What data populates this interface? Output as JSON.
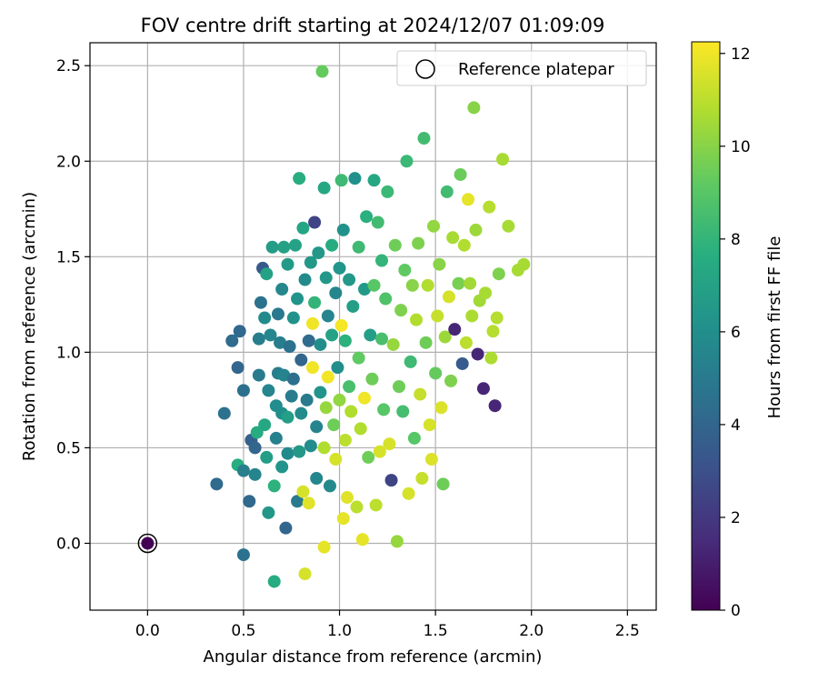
{
  "chart_data": {
    "type": "scatter",
    "title": "FOV centre drift starting at 2024/12/07 01:09:09",
    "xlabel": "Angular distance from reference (arcmin)",
    "ylabel": "Rotation from reference (arcmin)",
    "xlim": [
      -0.3,
      2.65
    ],
    "ylim": [
      -0.35,
      2.62
    ],
    "xticks": [
      "0.0",
      "0.5",
      "1.0",
      "1.5",
      "2.0",
      "2.5"
    ],
    "yticks": [
      "0.0",
      "0.5",
      "1.0",
      "1.5",
      "2.0",
      "2.5"
    ],
    "grid": true,
    "legend": {
      "placement": "top-right",
      "entries": [
        "Reference platepar"
      ]
    },
    "colorbar": {
      "label": "Hours from first FF file",
      "ticks": [
        "0",
        "2",
        "4",
        "6",
        "8",
        "10",
        "12"
      ],
      "range": [
        0,
        12.25
      ],
      "colormap": "viridis"
    },
    "reference_point": {
      "x": 0.0,
      "y": 0.0,
      "hours": 0.0
    },
    "points": [
      [
        0.36,
        0.31,
        4.2
      ],
      [
        0.4,
        0.68,
        4.6
      ],
      [
        0.44,
        1.06,
        4.3
      ],
      [
        0.47,
        0.41,
        7.6
      ],
      [
        0.47,
        0.92,
        4.0
      ],
      [
        0.48,
        1.11,
        4.1
      ],
      [
        0.5,
        -0.06,
        4.6
      ],
      [
        0.5,
        0.8,
        4.5
      ],
      [
        0.5,
        0.38,
        5.2
      ],
      [
        0.53,
        0.22,
        4.1
      ],
      [
        0.54,
        0.54,
        3.8
      ],
      [
        0.56,
        0.5,
        4.0
      ],
      [
        0.56,
        0.36,
        5.5
      ],
      [
        0.57,
        0.58,
        7.5
      ],
      [
        0.58,
        0.88,
        5.0
      ],
      [
        0.58,
        1.07,
        5.2
      ],
      [
        0.59,
        1.26,
        4.6
      ],
      [
        0.6,
        1.44,
        3.4
      ],
      [
        0.61,
        0.62,
        7.3
      ],
      [
        0.61,
        1.18,
        5.8
      ],
      [
        0.62,
        0.45,
        6.8
      ],
      [
        0.62,
        1.41,
        7.0
      ],
      [
        0.63,
        0.8,
        5.6
      ],
      [
        0.63,
        0.16,
        6.5
      ],
      [
        0.64,
        1.09,
        5.6
      ],
      [
        0.65,
        1.55,
        6.7
      ],
      [
        0.66,
        0.3,
        7.8
      ],
      [
        0.66,
        -0.2,
        7.5
      ],
      [
        0.67,
        0.72,
        5.9
      ],
      [
        0.67,
        0.55,
        5.3
      ],
      [
        0.68,
        0.89,
        5.2
      ],
      [
        0.68,
        1.2,
        4.9
      ],
      [
        0.69,
        1.05,
        5.2
      ],
      [
        0.7,
        0.4,
        6.3
      ],
      [
        0.7,
        1.33,
        5.7
      ],
      [
        0.7,
        0.68,
        6.1
      ],
      [
        0.71,
        1.55,
        7.0
      ],
      [
        0.71,
        0.88,
        5.5
      ],
      [
        0.72,
        0.08,
        4.0
      ],
      [
        0.73,
        0.66,
        6.8
      ],
      [
        0.73,
        0.47,
        5.8
      ],
      [
        0.73,
        1.46,
        6.6
      ],
      [
        0.74,
        1.03,
        4.6
      ],
      [
        0.75,
        0.77,
        5.1
      ],
      [
        0.76,
        0.86,
        4.5
      ],
      [
        0.76,
        1.18,
        6.2
      ],
      [
        0.77,
        1.56,
        7.0
      ],
      [
        0.78,
        0.22,
        5.0
      ],
      [
        0.78,
        1.28,
        6.3
      ],
      [
        0.79,
        1.91,
        7.6
      ],
      [
        0.79,
        0.48,
        6.5
      ],
      [
        0.8,
        0.96,
        4.0
      ],
      [
        0.8,
        0.68,
        5.8
      ],
      [
        0.81,
        1.65,
        7.2
      ],
      [
        0.81,
        0.27,
        11.5
      ],
      [
        0.82,
        1.38,
        5.8
      ],
      [
        0.82,
        -0.16,
        11.5
      ],
      [
        0.83,
        0.75,
        5.0
      ],
      [
        0.84,
        1.06,
        4.3
      ],
      [
        0.84,
        0.21,
        11.7
      ],
      [
        0.85,
        1.47,
        6.5
      ],
      [
        0.85,
        0.51,
        5.9
      ],
      [
        0.86,
        0.92,
        12.0
      ],
      [
        0.86,
        1.15,
        12.0
      ],
      [
        0.87,
        1.26,
        8.0
      ],
      [
        0.87,
        1.68,
        2.5
      ],
      [
        0.88,
        0.34,
        5.6
      ],
      [
        0.88,
        0.61,
        5.5
      ],
      [
        0.89,
        1.52,
        6.5
      ],
      [
        0.9,
        0.79,
        6.3
      ],
      [
        0.9,
        1.04,
        6.0
      ],
      [
        0.91,
        2.47,
        9.3
      ],
      [
        0.92,
        1.86,
        7.3
      ],
      [
        0.92,
        0.5,
        10.8
      ],
      [
        0.92,
        -0.02,
        11.8
      ],
      [
        0.93,
        1.39,
        6.5
      ],
      [
        0.93,
        0.71,
        10.3
      ],
      [
        0.94,
        0.87,
        12.0
      ],
      [
        0.94,
        1.19,
        5.5
      ],
      [
        0.95,
        0.3,
        5.8
      ],
      [
        0.96,
        1.56,
        7.5
      ],
      [
        0.96,
        1.09,
        7.0
      ],
      [
        0.97,
        0.62,
        9.5
      ],
      [
        0.98,
        0.44,
        11.5
      ],
      [
        0.98,
        1.31,
        5.6
      ],
      [
        0.99,
        0.92,
        6.0
      ],
      [
        1.0,
        0.75,
        10.2
      ],
      [
        1.0,
        1.44,
        6.4
      ],
      [
        1.01,
        1.9,
        8.3
      ],
      [
        1.01,
        1.14,
        12.1
      ],
      [
        1.02,
        1.64,
        6.2
      ],
      [
        1.02,
        0.13,
        11.8
      ],
      [
        1.03,
        0.54,
        11.0
      ],
      [
        1.03,
        1.06,
        7.8
      ],
      [
        1.04,
        0.24,
        11.7
      ],
      [
        1.05,
        1.38,
        6.5
      ],
      [
        1.05,
        0.82,
        8.6
      ],
      [
        1.06,
        0.69,
        10.8
      ],
      [
        1.07,
        1.24,
        6.8
      ],
      [
        1.08,
        1.91,
        6.1
      ],
      [
        1.09,
        0.19,
        11.0
      ],
      [
        1.1,
        1.55,
        8.3
      ],
      [
        1.1,
        0.97,
        9.2
      ],
      [
        1.11,
        0.6,
        10.8
      ],
      [
        1.12,
        0.02,
        11.8
      ],
      [
        1.13,
        1.33,
        6.6
      ],
      [
        1.13,
        0.76,
        12.0
      ],
      [
        1.14,
        1.71,
        7.7
      ],
      [
        1.15,
        0.45,
        9.5
      ],
      [
        1.16,
        1.09,
        6.8
      ],
      [
        1.17,
        0.86,
        9.5
      ],
      [
        1.18,
        1.35,
        9.0
      ],
      [
        1.18,
        1.9,
        7.3
      ],
      [
        1.19,
        0.2,
        11.0
      ],
      [
        1.2,
        1.68,
        8.4
      ],
      [
        1.21,
        0.48,
        11.5
      ],
      [
        1.22,
        1.07,
        8.6
      ],
      [
        1.22,
        1.48,
        8.0
      ],
      [
        1.23,
        0.7,
        9.0
      ],
      [
        1.24,
        1.28,
        8.8
      ],
      [
        1.25,
        1.84,
        8.2
      ],
      [
        1.26,
        0.52,
        11.5
      ],
      [
        1.27,
        0.33,
        2.5
      ],
      [
        1.28,
        1.04,
        10.3
      ],
      [
        1.29,
        1.56,
        9.5
      ],
      [
        1.3,
        0.01,
        10.3
      ],
      [
        1.31,
        0.82,
        9.5
      ],
      [
        1.32,
        1.22,
        9.8
      ],
      [
        1.33,
        0.69,
        8.5
      ],
      [
        1.34,
        1.43,
        9.2
      ],
      [
        1.35,
        2.0,
        8.2
      ],
      [
        1.36,
        0.26,
        11.5
      ],
      [
        1.37,
        0.95,
        8.3
      ],
      [
        1.38,
        1.35,
        10.0
      ],
      [
        1.39,
        0.55,
        9.0
      ],
      [
        1.4,
        1.17,
        10.8
      ],
      [
        1.41,
        1.57,
        9.8
      ],
      [
        1.42,
        0.78,
        11.2
      ],
      [
        1.43,
        0.34,
        11.2
      ],
      [
        1.44,
        2.12,
        8.4
      ],
      [
        1.45,
        1.05,
        9.5
      ],
      [
        1.46,
        1.35,
        10.8
      ],
      [
        1.47,
        0.62,
        11.5
      ],
      [
        1.48,
        0.44,
        11.6
      ],
      [
        1.49,
        1.66,
        10.2
      ],
      [
        1.5,
        0.89,
        9.3
      ],
      [
        1.51,
        1.19,
        11.2
      ],
      [
        1.52,
        1.46,
        10.0
      ],
      [
        1.53,
        0.71,
        11.6
      ],
      [
        1.54,
        0.31,
        9.5
      ],
      [
        1.55,
        1.08,
        10.4
      ],
      [
        1.56,
        1.84,
        8.4
      ],
      [
        1.57,
        1.29,
        11.5
      ],
      [
        1.58,
        0.85,
        9.8
      ],
      [
        1.59,
        1.6,
        10.6
      ],
      [
        1.6,
        1.12,
        1.3
      ],
      [
        1.62,
        1.36,
        9.7
      ],
      [
        1.63,
        1.93,
        9.4
      ],
      [
        1.64,
        0.94,
        3.5
      ],
      [
        1.65,
        1.56,
        10.8
      ],
      [
        1.66,
        1.05,
        11.0
      ],
      [
        1.67,
        1.8,
        11.8
      ],
      [
        1.68,
        1.36,
        10.5
      ],
      [
        1.69,
        1.19,
        10.7
      ],
      [
        1.7,
        2.28,
        10.0
      ],
      [
        1.71,
        1.64,
        10.4
      ],
      [
        1.72,
        0.99,
        1.3
      ],
      [
        1.73,
        1.27,
        10.5
      ],
      [
        1.75,
        0.81,
        1.3
      ],
      [
        1.76,
        1.31,
        10.6
      ],
      [
        1.78,
        1.76,
        10.9
      ],
      [
        1.8,
        1.11,
        10.9
      ],
      [
        1.81,
        0.72,
        1.3
      ],
      [
        1.82,
        1.18,
        10.9
      ],
      [
        1.83,
        1.41,
        9.8
      ],
      [
        1.85,
        2.01,
        10.6
      ],
      [
        1.88,
        1.66,
        10.6
      ],
      [
        1.93,
        1.43,
        10.6
      ],
      [
        1.96,
        1.46,
        10.6
      ],
      [
        1.79,
        0.97,
        10.7
      ]
    ]
  }
}
